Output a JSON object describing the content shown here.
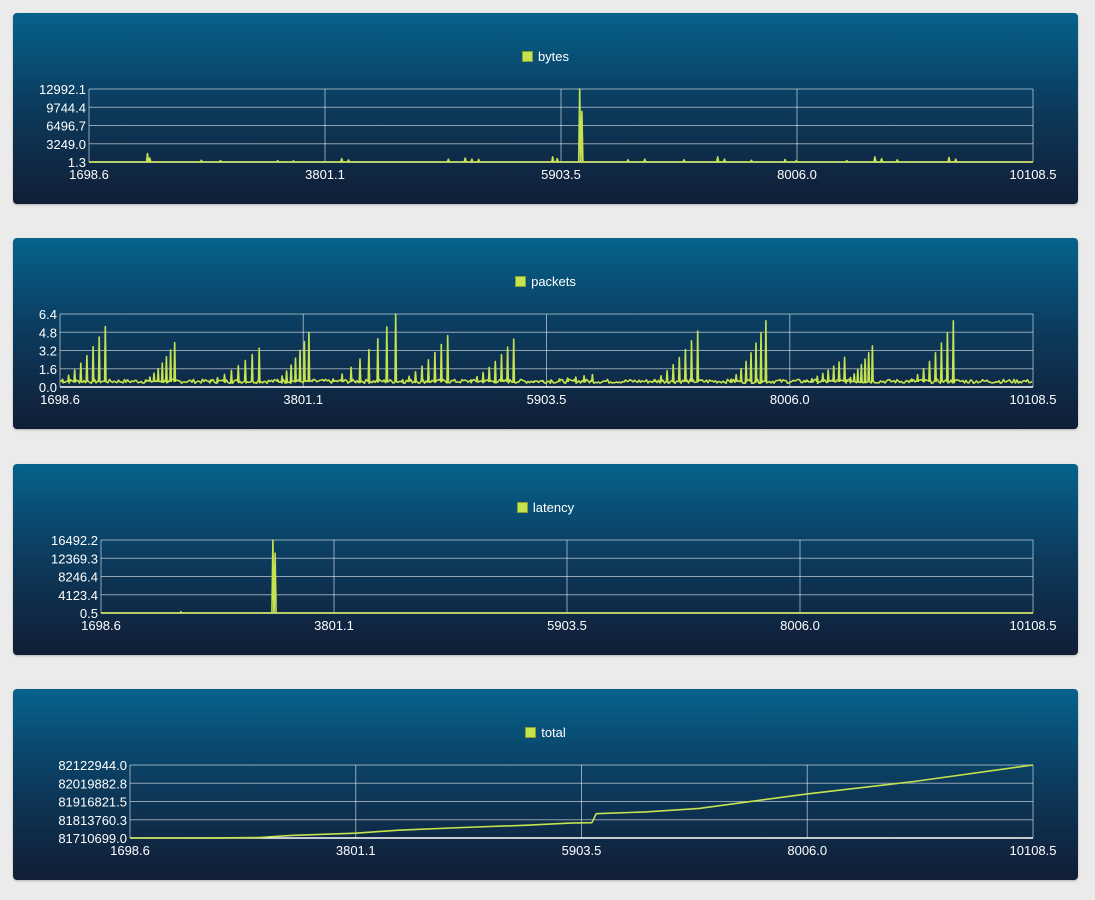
{
  "accent_color": "#c5e24f",
  "chart_data": [
    {
      "type": "line",
      "series": [
        {
          "name": "bytes"
        }
      ],
      "xlim": [
        1698.6,
        10108.5
      ],
      "ylim": [
        1.3,
        12992.1
      ],
      "x_ticks": [
        "1698.6",
        "3801.1",
        "5903.5",
        "8006.0",
        "10108.5"
      ],
      "y_ticks": [
        "12992.1",
        "9744.4",
        "6496.7",
        "3249.0",
        "1.3"
      ],
      "grid": true,
      "legend": "top-center",
      "spikes": [
        {
          "x": 2220,
          "y": 1500
        },
        {
          "x": 2240,
          "y": 700
        },
        {
          "x": 2700,
          "y": 300
        },
        {
          "x": 2870,
          "y": 250
        },
        {
          "x": 3380,
          "y": 250
        },
        {
          "x": 3520,
          "y": 200
        },
        {
          "x": 3950,
          "y": 600
        },
        {
          "x": 4010,
          "y": 350
        },
        {
          "x": 4900,
          "y": 500
        },
        {
          "x": 5050,
          "y": 700
        },
        {
          "x": 5110,
          "y": 500
        },
        {
          "x": 5170,
          "y": 450
        },
        {
          "x": 5830,
          "y": 900
        },
        {
          "x": 5870,
          "y": 600
        },
        {
          "x": 6070,
          "y": 12992
        },
        {
          "x": 6090,
          "y": 9000
        },
        {
          "x": 6500,
          "y": 400
        },
        {
          "x": 6650,
          "y": 500
        },
        {
          "x": 7000,
          "y": 400
        },
        {
          "x": 7300,
          "y": 900
        },
        {
          "x": 7360,
          "y": 500
        },
        {
          "x": 7600,
          "y": 300
        },
        {
          "x": 7900,
          "y": 450
        },
        {
          "x": 8000,
          "y": 250
        },
        {
          "x": 8450,
          "y": 250
        },
        {
          "x": 8700,
          "y": 900
        },
        {
          "x": 8760,
          "y": 600
        },
        {
          "x": 8900,
          "y": 400
        },
        {
          "x": 9360,
          "y": 800
        },
        {
          "x": 9420,
          "y": 500
        }
      ]
    },
    {
      "type": "line",
      "series": [
        {
          "name": "packets"
        }
      ],
      "xlim": [
        1698.6,
        10108.5
      ],
      "ylim": [
        0.0,
        6.4
      ],
      "x_ticks": [
        "1698.6",
        "3801.1",
        "5903.5",
        "8006.0",
        "10108.5"
      ],
      "y_ticks": [
        "6.4",
        "4.8",
        "3.2",
        "1.6",
        "0.0"
      ],
      "grid": true,
      "legend": "top-center",
      "baseline": 0.5,
      "clusters": [
        {
          "x_start": 1720,
          "x_end": 2090,
          "peak": 5.3
        },
        {
          "x_start": 2440,
          "x_end": 2690,
          "peak": 3.9
        },
        {
          "x_start": 3000,
          "x_end": 3420,
          "peak": 3.4
        },
        {
          "x_start": 3580,
          "x_end": 3850,
          "peak": 4.8
        },
        {
          "x_start": 4060,
          "x_end": 4600,
          "peak": 6.4
        },
        {
          "x_start": 4660,
          "x_end": 5050,
          "peak": 4.5
        },
        {
          "x_start": 5250,
          "x_end": 5620,
          "peak": 4.2
        },
        {
          "x_start": 5800,
          "x_end": 6300,
          "peak": 1.1
        },
        {
          "x_start": 6840,
          "x_end": 7210,
          "peak": 4.9
        },
        {
          "x_start": 7500,
          "x_end": 7800,
          "peak": 5.8
        },
        {
          "x_start": 8150,
          "x_end": 8480,
          "peak": 2.6
        },
        {
          "x_start": 8500,
          "x_end": 8720,
          "peak": 3.6
        },
        {
          "x_start": 9060,
          "x_end": 9420,
          "peak": 5.8
        }
      ]
    },
    {
      "type": "line",
      "series": [
        {
          "name": "latency"
        }
      ],
      "xlim": [
        1698.6,
        10108.5
      ],
      "ylim": [
        0.5,
        16492.2
      ],
      "x_ticks": [
        "1698.6",
        "3801.1",
        "5903.5",
        "8006.0",
        "10108.5"
      ],
      "y_ticks": [
        "16492.2",
        "12369.3",
        "8246.4",
        "4123.4",
        "0.5"
      ],
      "grid": true,
      "legend": "top-center",
      "spikes": [
        {
          "x": 2420,
          "y": 300
        },
        {
          "x": 3250,
          "y": 16492
        },
        {
          "x": 3270,
          "y": 13500
        }
      ]
    },
    {
      "type": "line",
      "series": [
        {
          "name": "total"
        }
      ],
      "xlim": [
        1698.6,
        10108.5
      ],
      "ylim": [
        81710699.0,
        82122944.0
      ],
      "x_ticks": [
        "1698.6",
        "3801.1",
        "5903.5",
        "8006.0",
        "10108.5"
      ],
      "y_ticks": [
        "82122944.0",
        "82019882.8",
        "81916821.5",
        "81813760.3",
        "81710699.0"
      ],
      "grid": true,
      "legend": "top-center",
      "points": [
        {
          "x": 1698.6,
          "y": 81710699
        },
        {
          "x": 2500,
          "y": 81711500
        },
        {
          "x": 2900,
          "y": 81713500
        },
        {
          "x": 3200,
          "y": 81725500
        },
        {
          "x": 3800,
          "y": 81738000
        },
        {
          "x": 4200,
          "y": 81755000
        },
        {
          "x": 4800,
          "y": 81770000
        },
        {
          "x": 5400,
          "y": 81783000
        },
        {
          "x": 5800,
          "y": 81795000
        },
        {
          "x": 6000,
          "y": 81797000
        },
        {
          "x": 6040,
          "y": 81848000
        },
        {
          "x": 6500,
          "y": 81858000
        },
        {
          "x": 7000,
          "y": 81878000
        },
        {
          "x": 8006,
          "y": 81960000
        },
        {
          "x": 9000,
          "y": 82030000
        },
        {
          "x": 10108.5,
          "y": 82122944
        }
      ]
    }
  ]
}
